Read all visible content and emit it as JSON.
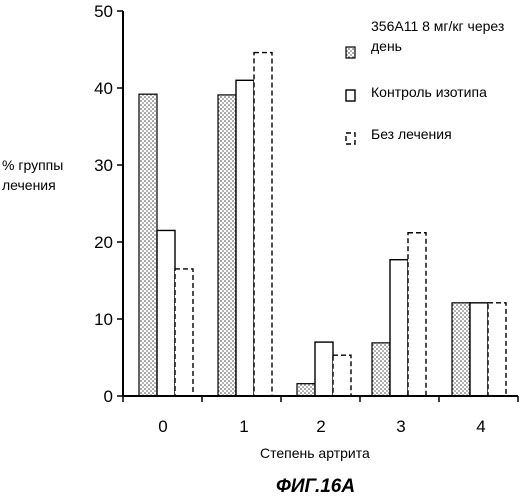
{
  "chart_data": {
    "type": "bar",
    "categories": [
      "0",
      "1",
      "2",
      "3",
      "4"
    ],
    "series": [
      {
        "name": "356A11 8 мг/кг через день",
        "values": [
          39.2,
          39.1,
          1.6,
          6.9,
          12.1
        ],
        "style": "dotted"
      },
      {
        "name": "Контроль изотипа",
        "values": [
          21.5,
          41.0,
          7.0,
          17.7,
          12.1
        ],
        "style": "open"
      },
      {
        "name": "Без лечения",
        "values": [
          16.5,
          44.6,
          5.3,
          21.2,
          12.1
        ],
        "style": "dashed"
      }
    ],
    "legend_lines": [
      [
        "356А11 8 мг/кг через",
        "день"
      ],
      [
        "Контроль изотипа"
      ],
      [
        "Без лечения"
      ]
    ],
    "legend_position": "top-right",
    "ylabel_lines": [
      "% группы",
      "лечения"
    ],
    "xlabel": "Степень артрита",
    "ylim": [
      0,
      50
    ],
    "yticks": [
      "0",
      "10",
      "20",
      "30",
      "40",
      "50"
    ],
    "grid": false,
    "caption": "ФИГ.16А"
  }
}
